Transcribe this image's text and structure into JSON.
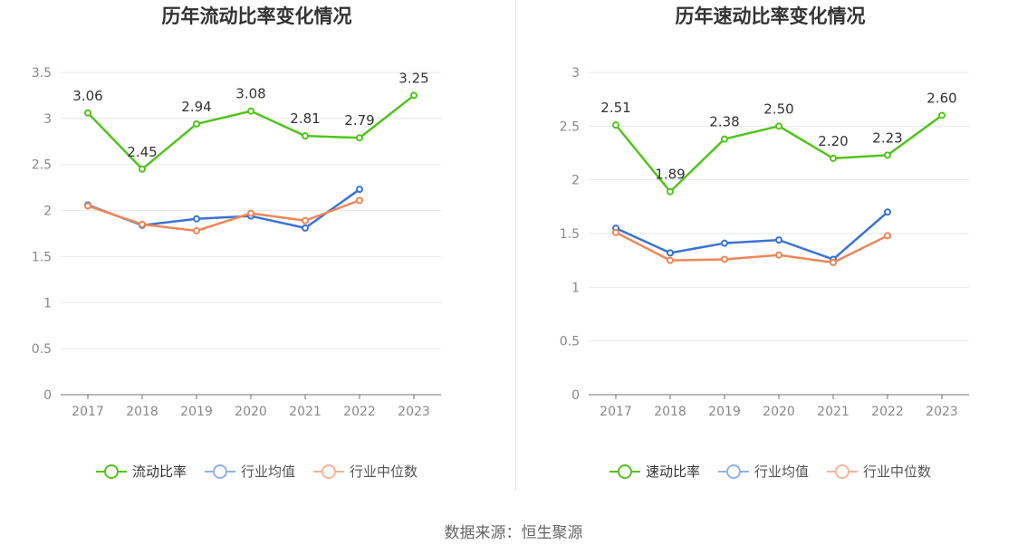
{
  "chart_data": [
    {
      "type": "line",
      "title": "历年流动比率变化情况",
      "categories": [
        "2017",
        "2018",
        "2019",
        "2020",
        "2021",
        "2022",
        "2023"
      ],
      "ylim": [
        0,
        3.5
      ],
      "yticks": [
        "0",
        "0.5",
        "1",
        "1.5",
        "2",
        "2.5",
        "3",
        "3.5"
      ],
      "series": [
        {
          "name": "流动比率",
          "color": "#52c41a",
          "values": [
            3.06,
            2.45,
            2.94,
            3.08,
            2.81,
            2.79,
            3.25
          ],
          "labels": [
            "3.06",
            "2.45",
            "2.94",
            "3.08",
            "2.81",
            "2.79",
            "3.25"
          ]
        },
        {
          "name": "行业均值",
          "color": "#3a72d8",
          "legend_color": "#8fb1ec",
          "values": [
            2.06,
            1.84,
            1.91,
            1.94,
            1.81,
            2.23,
            null
          ]
        },
        {
          "name": "行业中位数",
          "color": "#f08656",
          "legend_color": "#f6b597",
          "values": [
            2.05,
            1.85,
            1.78,
            1.97,
            1.89,
            2.11,
            null
          ]
        }
      ]
    },
    {
      "type": "line",
      "title": "历年速动比率变化情况",
      "categories": [
        "2017",
        "2018",
        "2019",
        "2020",
        "2021",
        "2022",
        "2023"
      ],
      "ylim": [
        0,
        3
      ],
      "yticks": [
        "0",
        "0.5",
        "1",
        "1.5",
        "2",
        "2.5",
        "3"
      ],
      "series": [
        {
          "name": "速动比率",
          "color": "#52c41a",
          "values": [
            2.51,
            1.89,
            2.38,
            2.5,
            2.2,
            2.23,
            2.6
          ],
          "labels": [
            "2.51",
            "1.89",
            "2.38",
            "2.50",
            "2.20",
            "2.23",
            "2.60"
          ]
        },
        {
          "name": "行业均值",
          "color": "#3a72d8",
          "legend_color": "#8fb1ec",
          "values": [
            1.55,
            1.32,
            1.41,
            1.44,
            1.26,
            1.7,
            null
          ]
        },
        {
          "name": "行业中位数",
          "color": "#f08656",
          "legend_color": "#f6b597",
          "values": [
            1.51,
            1.25,
            1.26,
            1.3,
            1.23,
            1.48,
            null
          ]
        }
      ]
    }
  ],
  "source": "数据来源：恒生聚源"
}
